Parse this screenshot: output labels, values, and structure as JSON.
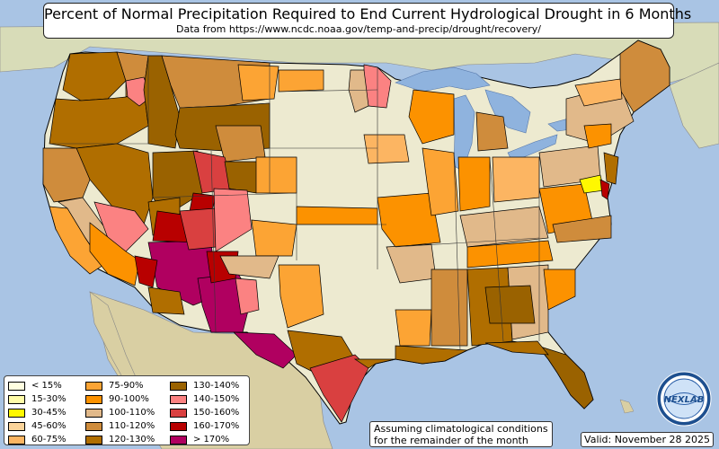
{
  "title": "Percent of Normal Precipitation Required to End Current Hydrological Drought in 6 Months",
  "subtitle": "Data from https://www.ncdc.noaa.gov/temp-and-precip/drought/recovery/",
  "note": [
    "Assuming climatological conditions",
    "for the remainder of the month"
  ],
  "valid": "Valid: November 28 2025",
  "logo_text": "NEXLAB",
  "legend": [
    {
      "label": "< 15%",
      "color": "#fffee0"
    },
    {
      "label": "15-30%",
      "color": "#fffca8"
    },
    {
      "label": "30-45%",
      "color": "#fff800"
    },
    {
      "label": "45-60%",
      "color": "#fbd49a"
    },
    {
      "label": "60-75%",
      "color": "#fcb562"
    },
    {
      "label": "75-90%",
      "color": "#fca434"
    },
    {
      "label": "90-100%",
      "color": "#fc9200"
    },
    {
      "label": "100-110%",
      "color": "#e1b98a"
    },
    {
      "label": "110-120%",
      "color": "#cf8c3c"
    },
    {
      "label": "120-130%",
      "color": "#b06e00"
    },
    {
      "label": "130-140%",
      "color": "#9a6200"
    },
    {
      "label": "140-150%",
      "color": "#fb8282"
    },
    {
      "label": "150-160%",
      "color": "#d94040"
    },
    {
      "label": "160-170%",
      "color": "#b80000"
    },
    {
      "label": "> 170%",
      "color": "#b00060"
    }
  ],
  "colors": {
    "ocean": "#a9c4e4",
    "land": "#e6e3c8",
    "no_drought": "#edead0",
    "canada": "#d8dcb8",
    "mexico": "#d9cfa3",
    "lakes": "#8fb3de",
    "border": "#000000"
  }
}
